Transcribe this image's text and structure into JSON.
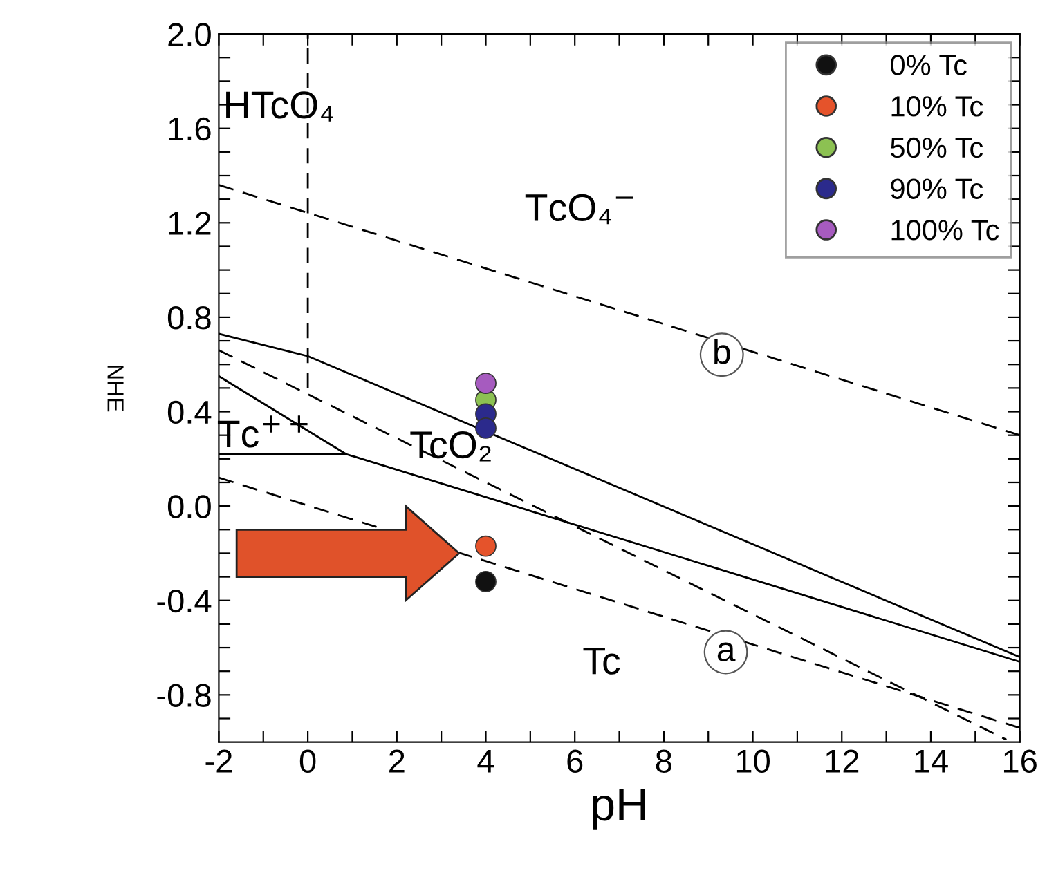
{
  "chart_data": {
    "type": "scatter",
    "xlabel": "pH",
    "ylabel": "NHE",
    "xlim": [
      -2,
      16
    ],
    "ylim": [
      -1.0,
      2.0
    ],
    "xticks": [
      -2,
      {
        "value": -1,
        "label": null
      },
      0,
      {
        "value": 1,
        "label": null
      },
      2,
      {
        "value": 3,
        "label": null
      },
      4,
      {
        "value": 5,
        "label": null
      },
      6,
      {
        "value": 7,
        "label": null
      },
      8,
      {
        "value": 9,
        "label": null
      },
      10,
      {
        "value": 11,
        "label": null
      },
      12,
      {
        "value": 13,
        "label": null
      },
      14,
      {
        "value": 15,
        "label": null
      },
      16
    ],
    "yticks": [
      {
        "value": -0.9,
        "label": null
      },
      -0.8,
      {
        "value": -0.7,
        "label": null
      },
      {
        "value": -0.6,
        "label": null
      },
      {
        "value": -0.5,
        "label": null
      },
      -0.4,
      {
        "value": -0.3,
        "label": null
      },
      {
        "value": -0.2,
        "label": null
      },
      {
        "value": -0.1,
        "label": null
      },
      {
        "value": 0.0,
        "label": "0.0"
      },
      {
        "value": 0.1,
        "label": null
      },
      {
        "value": 0.2,
        "label": null
      },
      {
        "value": 0.3,
        "label": null
      },
      0.4,
      {
        "value": 0.5,
        "label": null
      },
      {
        "value": 0.6,
        "label": null
      },
      {
        "value": 0.7,
        "label": null
      },
      0.8,
      {
        "value": 0.9,
        "label": null
      },
      {
        "value": 1.0,
        "label": null
      },
      {
        "value": 1.1,
        "label": null
      },
      1.2,
      {
        "value": 1.3,
        "label": null
      },
      {
        "value": 1.4,
        "label": null
      },
      {
        "value": 1.5,
        "label": null
      },
      1.6,
      {
        "value": 1.7,
        "label": null
      },
      {
        "value": 1.8,
        "label": null
      },
      {
        "value": 1.9,
        "label": null
      },
      {
        "value": 2.0,
        "label": "2.0"
      }
    ],
    "grid": false,
    "legend": "top right",
    "marker": "circle",
    "series": [
      {
        "type": "line",
        "marker": "none",
        "color": "#000000",
        "line_style": "dashed",
        "x": [
          -2,
          16
        ],
        "values": [
          1.36,
          0.3
        ]
      },
      {
        "type": "line",
        "marker": "none",
        "color": "#000000",
        "line_style": "dashed",
        "x": [
          -2,
          16
        ],
        "values": [
          0.12,
          -0.94
        ]
      },
      {
        "type": "line",
        "marker": "none",
        "color": "#000000",
        "line_style": "dashed",
        "x": [
          -2,
          15.7
        ],
        "values": [
          0.66,
          -0.99
        ]
      },
      {
        "type": "line",
        "marker": "none",
        "color": "#000000",
        "line_style": "dashed",
        "x": [
          0,
          0
        ],
        "values": [
          0.5,
          2.0
        ]
      },
      {
        "type": "line",
        "marker": "none",
        "color": "#000000",
        "line_style": "solid",
        "x": [
          -2,
          0,
          16
        ],
        "values": [
          0.73,
          0.635,
          -0.64
        ]
      },
      {
        "type": "line",
        "marker": "none",
        "color": "#000000",
        "line_style": "solid",
        "x": [
          -2,
          0.86,
          16
        ],
        "values": [
          0.55,
          0.22,
          -0.66
        ]
      },
      {
        "type": "line",
        "marker": "none",
        "color": "#000000",
        "line_style": "solid",
        "x": [
          -2,
          0.86
        ],
        "values": [
          0.22,
          0.22
        ]
      },
      {
        "name": "0% Tc",
        "color": "#111111",
        "x": [
          4
        ],
        "values": [
          -0.32
        ]
      },
      {
        "name": "10% Tc",
        "color": "#e5532b",
        "x": [
          4
        ],
        "values": [
          -0.17
        ]
      },
      {
        "name": "50% Tc",
        "color": "#8cc152",
        "x": [
          4
        ],
        "values": [
          0.45
        ]
      },
      {
        "name": "90% Tc",
        "color": "#2b2a8c",
        "x": [
          4,
          4
        ],
        "values": [
          0.39,
          0.33
        ]
      },
      {
        "name": "100% Tc",
        "color": "#a65bbf",
        "x": [
          4
        ],
        "values": [
          0.52
        ]
      }
    ],
    "annotations": [
      "HTcO₄",
      "TcO₄$^{−}$",
      "Tc$^{++}$",
      "TcO₂",
      "Tc",
      "a",
      "b"
    ]
  }
}
